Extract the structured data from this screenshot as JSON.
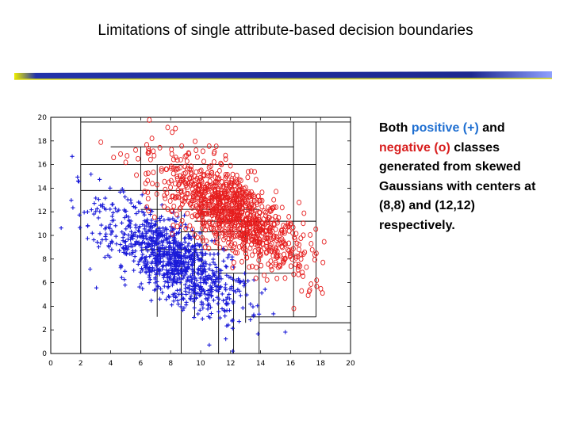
{
  "slide": {
    "title": "Limitations of single attribute-based decision boundaries"
  },
  "caption": {
    "part1": "Both ",
    "positive": "positive (+)",
    "part2": " and ",
    "negative": "negative (o)",
    "part3": " classes generated from skewed Gaussians with centers at (8,8) and (12,12) respectively."
  },
  "colors": {
    "positive": "#1a1ad8",
    "negative": "#e61e1e",
    "caption_positive": "#1f6fd1",
    "caption_negative": "#d81e1e",
    "rule_dark": "#1e2a8a",
    "rule_light": "#e6e600"
  },
  "chart_data": {
    "type": "scatter",
    "title": "",
    "xlabel": "",
    "ylabel": "",
    "xlim": [
      0,
      20
    ],
    "ylim": [
      0,
      20
    ],
    "x_ticks": [
      "0",
      "2",
      "4",
      "6",
      "8",
      "10",
      "12",
      "14",
      "16",
      "18",
      "20"
    ],
    "y_ticks": [
      "0",
      "2",
      "4",
      "6",
      "8",
      "10",
      "12",
      "14",
      "16",
      "18",
      "20"
    ],
    "grid": false,
    "series": [
      {
        "marker": "+",
        "color": "#1a1ad8",
        "center": [
          8,
          8
        ],
        "approx_count": 1000,
        "axis_direction": [
          1,
          -1
        ],
        "spread_major": 3.1,
        "spread_minor": 1.3
      },
      {
        "marker": "o",
        "color": "#e61e1e",
        "center": [
          12,
          12
        ],
        "approx_count": 1000,
        "axis_direction": [
          1,
          -1
        ],
        "spread_major": 3.1,
        "spread_minor": 1.3
      }
    ],
    "decision_boundaries": {
      "vertical_x": [
        2,
        6,
        7.1,
        8.7,
        9.6,
        10.1,
        11.2,
        12.2,
        13,
        13.9,
        16.2,
        17.7
      ],
      "horizontal_y": [
        3.1,
        2.6,
        6.8,
        8.8,
        10.3,
        11.2,
        12.2,
        13.8,
        16,
        17.5,
        19.6
      ],
      "notes": "axis-parallel splits from single-attribute decision tree"
    }
  }
}
